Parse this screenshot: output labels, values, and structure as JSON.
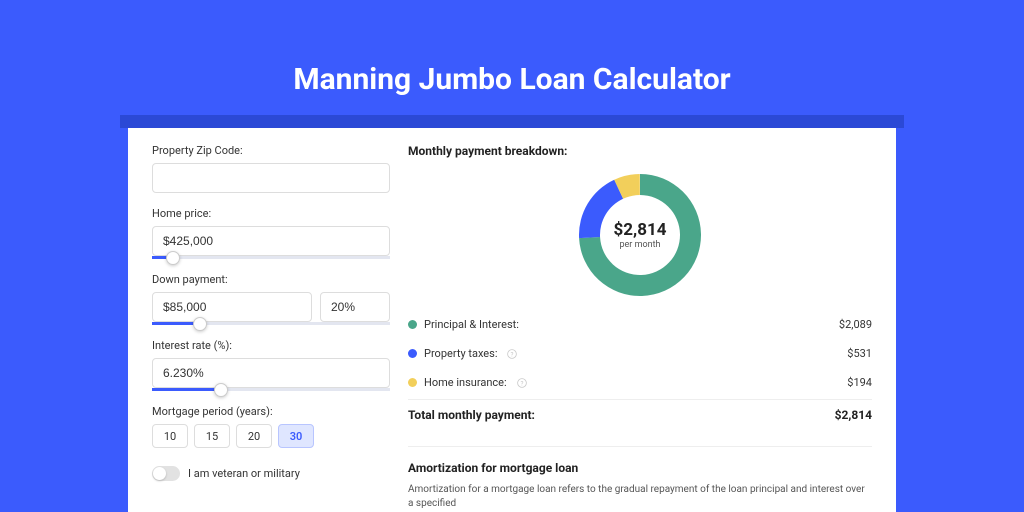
{
  "page": {
    "title": "Manning Jumbo Loan Calculator",
    "background_color": "#3b5bfd",
    "shadow_strip_color": "#2b49d6",
    "card_background": "#ffffff"
  },
  "form": {
    "zip": {
      "label": "Property Zip Code:",
      "value": ""
    },
    "home_price": {
      "label": "Home price:",
      "value": "$425,000",
      "slider_pct": 9
    },
    "down_payment": {
      "label": "Down payment:",
      "amount": "$85,000",
      "percent": "20%",
      "slider_pct": 20
    },
    "interest_rate": {
      "label": "Interest rate (%):",
      "value": "6.230%",
      "slider_pct": 29
    },
    "period": {
      "label": "Mortgage period (years):",
      "options": [
        "10",
        "15",
        "20",
        "30"
      ],
      "selected": "30"
    },
    "veteran": {
      "label": "I am veteran or military",
      "on": false
    }
  },
  "breakdown": {
    "title": "Monthly payment breakdown:",
    "center_amount": "$2,814",
    "center_label": "per month",
    "donut": {
      "type": "donut",
      "outer_radius": 61,
      "inner_radius": 40,
      "background_color": "#ffffff",
      "slices": [
        {
          "label": "Principal & Interest",
          "value": 2089,
          "color": "#4aa68a",
          "angle_deg": 267.1
        },
        {
          "label": "Property taxes",
          "value": 531,
          "color": "#3b5bfd",
          "angle_deg": 67.9
        },
        {
          "label": "Home insurance",
          "value": 194,
          "color": "#f2cf5b",
          "angle_deg": 24.8
        }
      ]
    },
    "items": [
      {
        "label": "Principal & Interest:",
        "value": "$2,089",
        "color": "#4aa68a",
        "info": false
      },
      {
        "label": "Property taxes:",
        "value": "$531",
        "color": "#3b5bfd",
        "info": true
      },
      {
        "label": "Home insurance:",
        "value": "$194",
        "color": "#f2cf5b",
        "info": true
      }
    ],
    "total_label": "Total monthly payment:",
    "total_value": "$2,814"
  },
  "amort": {
    "title": "Amortization for mortgage loan",
    "text": "Amortization for a mortgage loan refers to the gradual repayment of the loan principal and interest over a specified"
  }
}
